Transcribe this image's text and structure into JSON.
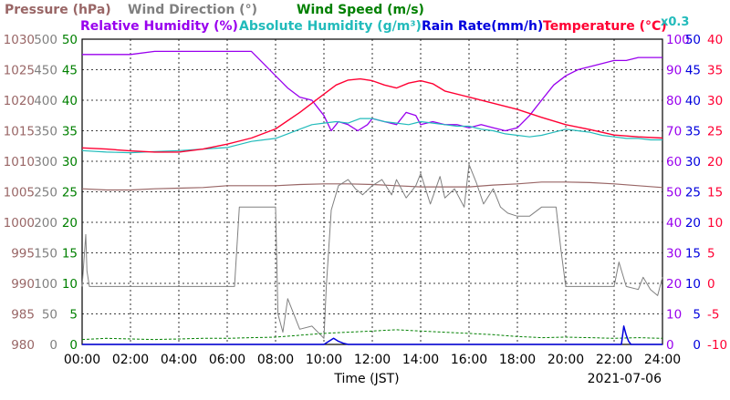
{
  "chart_data": {
    "type": "line",
    "date": "2021-07-06",
    "xlabel": "Time (JST)",
    "x_ticks": [
      "00:00",
      "02:00",
      "04:00",
      "06:00",
      "08:00",
      "10:00",
      "12:00",
      "14:00",
      "16:00",
      "18:00",
      "20:00",
      "22:00",
      "24:00"
    ],
    "xlim": [
      0,
      24
    ],
    "grid": true,
    "legend": {
      "pressure": "Pressure (hPa)",
      "wind_dir": "Wind Direction (°)",
      "wind_speed": "Wind Speed (m/s)",
      "rel_humidity": "Relative Humidity (%)",
      "abs_humidity": "Absolute Humidity (g/m³)",
      "abs_humidity_factor": "x0.3",
      "rain_rate": "Rain Rate(mm/h)",
      "temperature": "Temperature (°C)"
    },
    "colors": {
      "pressure": "#996666",
      "wind_dir": "#808080",
      "wind_speed": "#008000",
      "rel_humidity": "#9900ee",
      "abs_humidity": "#22bbbb",
      "rain_rate": "#0000dd",
      "temperature": "#ff0033"
    },
    "axes": {
      "pressure": {
        "ticks": [
          "1030",
          "1025",
          "1020",
          "1015",
          "1010",
          "1005",
          "1000",
          "995",
          "990",
          "985",
          "980"
        ],
        "ylim": [
          980,
          1030
        ]
      },
      "wind_dir": {
        "ticks": [
          "500",
          "450",
          "400",
          "350",
          "300",
          "250",
          "200",
          "150",
          "100",
          "50",
          "0"
        ],
        "ylim": [
          0,
          500
        ]
      },
      "wind_speed": {
        "ticks": [
          "50",
          "45",
          "40",
          "35",
          "30",
          "25",
          "20",
          "15",
          "10",
          "5",
          "0"
        ],
        "ylim": [
          0,
          50
        ]
      },
      "rel_humidity": {
        "ticks": [
          "100",
          "90",
          "80",
          "70",
          "60",
          "50",
          "40",
          "30",
          "20",
          "10",
          "0"
        ],
        "ylim": [
          0,
          100
        ]
      },
      "rain_rate": {
        "ticks": [
          "50",
          "45",
          "40",
          "35",
          "30",
          "25",
          "20",
          "15",
          "10",
          "5",
          "0"
        ],
        "ylim": [
          0,
          50
        ]
      },
      "temperature": {
        "ticks": [
          "40",
          "35",
          "30",
          "25",
          "20",
          "15",
          "10",
          "5",
          "0",
          "-5",
          "-10"
        ],
        "ylim": [
          -10,
          40
        ]
      }
    },
    "series": [
      {
        "name": "Pressure (hPa)",
        "key": "pressure",
        "x": [
          0,
          1,
          2,
          3,
          4,
          5,
          6,
          7,
          8,
          9,
          10,
          11,
          12,
          13,
          14,
          15,
          16,
          17,
          18,
          19,
          20,
          21,
          22,
          23,
          24
        ],
        "values": [
          1005.5,
          1005.3,
          1005.3,
          1005.5,
          1005.6,
          1005.7,
          1006.0,
          1006.0,
          1006.0,
          1006.2,
          1006.3,
          1006.3,
          1006.2,
          1006.0,
          1005.8,
          1005.8,
          1005.8,
          1006.1,
          1006.3,
          1006.6,
          1006.6,
          1006.5,
          1006.3,
          1006.0,
          1005.7
        ]
      },
      {
        "name": "Wind Direction (°)",
        "key": "wind_dir",
        "x": [
          0,
          0.15,
          0.2,
          0.3,
          0.5,
          1,
          2,
          3,
          4,
          5,
          6,
          6.3,
          6.5,
          7,
          7.5,
          8,
          8.1,
          8.3,
          8.5,
          9,
          9.5,
          10,
          10.1,
          10.3,
          10.6,
          11,
          11.3,
          11.6,
          12,
          12.4,
          12.8,
          13,
          13.4,
          13.8,
          14,
          14.4,
          14.8,
          15,
          15.4,
          15.8,
          16,
          16.3,
          16.6,
          17,
          17.3,
          17.6,
          18,
          18.5,
          19,
          19.6,
          19.8,
          20,
          20.5,
          21,
          21.5,
          22,
          22.2,
          22.5,
          23,
          23.2,
          23.5,
          23.8,
          24
        ],
        "values": [
          95,
          180,
          120,
          95,
          95,
          95,
          95,
          95,
          95,
          95,
          95,
          95,
          225,
          225,
          225,
          225,
          50,
          20,
          75,
          25,
          30,
          10,
          95,
          220,
          260,
          270,
          255,
          245,
          260,
          270,
          245,
          270,
          240,
          260,
          280,
          230,
          275,
          240,
          255,
          225,
          295,
          265,
          230,
          255,
          225,
          215,
          210,
          210,
          225,
          225,
          155,
          95,
          95,
          95,
          95,
          95,
          135,
          95,
          90,
          110,
          90,
          80,
          110
        ]
      },
      {
        "name": "Wind Speed (m/s)",
        "key": "wind_speed",
        "x": [
          0,
          1,
          2,
          3,
          4,
          5,
          6,
          7,
          8,
          9,
          10,
          11,
          12,
          13,
          14,
          15,
          16,
          17,
          18,
          19,
          20,
          21,
          22,
          23,
          24
        ],
        "values": [
          0.8,
          1.0,
          0.9,
          0.8,
          0.9,
          1.0,
          1.0,
          1.1,
          1.2,
          1.5,
          1.8,
          2.0,
          2.2,
          2.4,
          2.2,
          2.0,
          1.8,
          1.6,
          1.3,
          1.1,
          1.2,
          1.1,
          1.0,
          1.1,
          1.0
        ]
      },
      {
        "name": "Relative Humidity (%)",
        "key": "rel_humidity",
        "x": [
          0,
          1,
          2,
          3,
          4,
          5,
          6,
          7,
          7.5,
          8,
          8.5,
          9,
          9.5,
          10,
          10.3,
          10.6,
          11,
          11.4,
          11.8,
          12,
          12.5,
          13,
          13.4,
          13.8,
          14,
          14.5,
          15,
          15.5,
          16,
          16.5,
          17,
          17.5,
          18,
          18.5,
          19,
          19.5,
          20,
          20.5,
          21,
          21.5,
          22,
          22.5,
          23,
          23.5,
          24
        ],
        "values": [
          95,
          95,
          95,
          96,
          96,
          96,
          96,
          96,
          92,
          88,
          84,
          81,
          80,
          75,
          70,
          73,
          72,
          70,
          72,
          74,
          73,
          72,
          76,
          75,
          72,
          73,
          72,
          72,
          71,
          72,
          71,
          70,
          71,
          75,
          80,
          85,
          88,
          90,
          91,
          92,
          93,
          93,
          94,
          94,
          94
        ]
      },
      {
        "name": "Absolute Humidity (g/m³)",
        "key": "abs_humidity",
        "x": [
          0,
          1,
          2,
          3,
          4,
          5,
          6,
          6.5,
          7,
          7.5,
          8,
          8.5,
          9,
          9.5,
          10,
          10.5,
          11,
          11.5,
          12,
          12.5,
          13,
          13.5,
          14,
          14.5,
          15,
          15.5,
          16,
          16.5,
          17,
          17.5,
          18,
          18.5,
          19,
          19.5,
          20,
          20.5,
          21,
          21.5,
          22,
          22.5,
          23,
          23.5,
          24
        ],
        "values": [
          63.5,
          63.0,
          62.8,
          63.2,
          63.5,
          64.0,
          64.5,
          65.5,
          66.5,
          67.0,
          67.5,
          69.0,
          70.5,
          72.0,
          72.5,
          73.0,
          72.5,
          74.0,
          74.0,
          73.0,
          72.5,
          72.0,
          73.0,
          72.5,
          72.0,
          71.5,
          71.5,
          70.5,
          70.0,
          69.0,
          68.5,
          68.0,
          68.5,
          69.5,
          70.5,
          70.0,
          69.5,
          68.5,
          68.0,
          67.5,
          67.5,
          67.0,
          67.0
        ]
      },
      {
        "name": "Rain Rate(mm/h)",
        "key": "rain_rate",
        "x": [
          0,
          10,
          10.2,
          10.4,
          10.6,
          10.8,
          11,
          22,
          22.3,
          22.4,
          22.5,
          22.6,
          22.7,
          24
        ],
        "values": [
          0,
          0,
          0.5,
          1.0,
          0.5,
          0.2,
          0,
          0,
          0,
          3,
          1.5,
          0.5,
          0,
          0
        ]
      },
      {
        "name": "Temperature (°C)",
        "key": "temperature",
        "x": [
          0,
          1,
          2,
          3,
          4,
          5,
          6,
          7,
          8,
          9,
          9.5,
          10,
          10.5,
          11,
          11.5,
          12,
          12.5,
          13,
          13.5,
          14,
          14.5,
          15,
          16,
          17,
          18,
          19,
          20,
          21,
          22,
          23,
          24
        ],
        "values": [
          22.2,
          22.0,
          21.7,
          21.5,
          21.5,
          22.0,
          22.8,
          23.8,
          25.3,
          28.0,
          29.5,
          31.0,
          32.5,
          33.3,
          33.5,
          33.2,
          32.5,
          32.0,
          32.8,
          33.2,
          32.7,
          31.5,
          30.5,
          29.5,
          28.5,
          27.2,
          26.0,
          25.2,
          24.3,
          24.0,
          23.8
        ]
      }
    ]
  }
}
